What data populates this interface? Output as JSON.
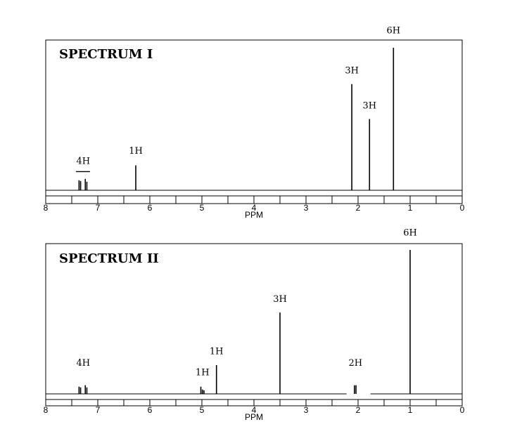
{
  "chart_data": [
    {
      "type": "line",
      "title": "SPECTRUM I",
      "xlabel": "PPM",
      "xlim": [
        8,
        0
      ],
      "x_reversed": true,
      "ticks": [
        "8",
        "7",
        "6",
        "5",
        "4",
        "3",
        "2",
        "1",
        "0"
      ],
      "peaks": [
        {
          "ppm": 7.36,
          "height": 0.07
        },
        {
          "ppm": 7.33,
          "height": 0.065
        },
        {
          "ppm": 7.24,
          "height": 0.08
        },
        {
          "ppm": 7.21,
          "height": 0.06
        },
        {
          "ppm": 6.27,
          "height": 0.175
        },
        {
          "ppm": 2.12,
          "height": 0.745
        },
        {
          "ppm": 1.78,
          "height": 0.5
        },
        {
          "ppm": 1.32,
          "height": 1.0
        }
      ],
      "annotations": [
        {
          "text": "4H",
          "ppm": 7.28,
          "level": 0.185,
          "bracket": [
            7.42,
            7.15
          ]
        },
        {
          "text": "1H",
          "ppm": 6.27,
          "level": 0.255
        },
        {
          "text": "3H",
          "ppm": 2.12,
          "level": 0.82
        },
        {
          "text": "3H",
          "ppm": 1.78,
          "level": 0.575
        },
        {
          "text": "6H",
          "ppm": 1.32,
          "level": 1.1
        }
      ]
    },
    {
      "type": "line",
      "title": "SPECTRUM II",
      "xlabel": "PPM",
      "xlim": [
        8,
        0
      ],
      "x_reversed": true,
      "ticks": [
        "8",
        "7",
        "6",
        "5",
        "4",
        "3",
        "2",
        "1",
        "0"
      ],
      "peaks": [
        {
          "ppm": 7.36,
          "height": 0.05
        },
        {
          "ppm": 7.33,
          "height": 0.045
        },
        {
          "ppm": 7.24,
          "height": 0.06
        },
        {
          "ppm": 7.21,
          "height": 0.045
        },
        {
          "ppm": 5.02,
          "height": 0.05
        },
        {
          "ppm": 4.99,
          "height": 0.03
        },
        {
          "ppm": 4.96,
          "height": 0.025
        },
        {
          "ppm": 4.72,
          "height": 0.2
        },
        {
          "ppm": 3.5,
          "height": 0.565
        },
        {
          "ppm": 2.07,
          "height": 0.06
        },
        {
          "ppm": 2.04,
          "height": 0.06
        },
        {
          "ppm": 1.0,
          "height": 1.0
        }
      ],
      "annotations": [
        {
          "text": "4H",
          "ppm": 7.28,
          "level": 0.195
        },
        {
          "text": "1H",
          "ppm": 4.99,
          "level": 0.13
        },
        {
          "text": "1H",
          "ppm": 4.72,
          "level": 0.275
        },
        {
          "text": "3H",
          "ppm": 3.5,
          "level": 0.64
        },
        {
          "text": "2H",
          "ppm": 2.05,
          "level": 0.195
        },
        {
          "text": "6H",
          "ppm": 1.0,
          "level": 1.1
        }
      ]
    }
  ]
}
